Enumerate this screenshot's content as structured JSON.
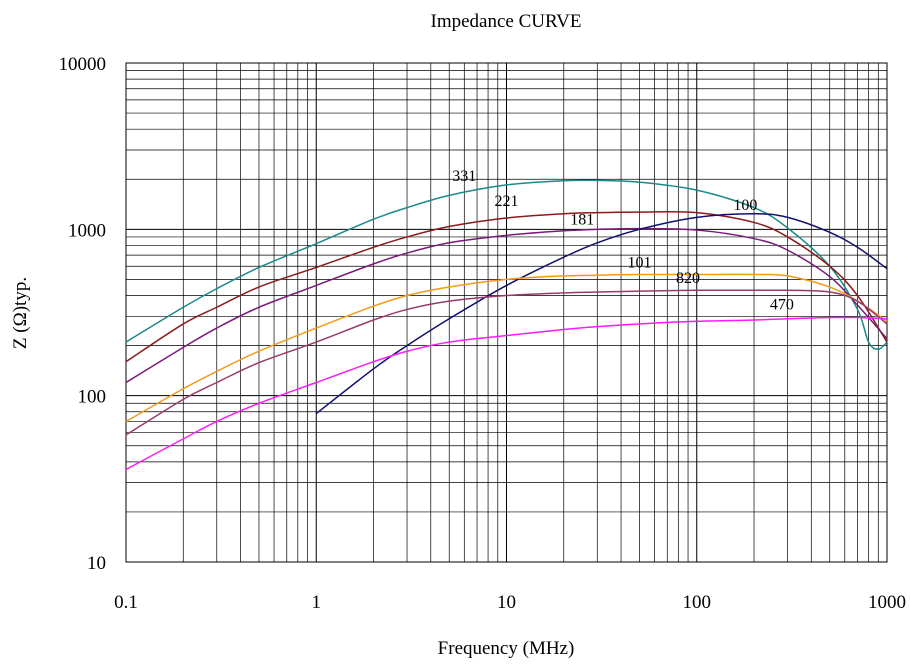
{
  "chart_data": {
    "type": "line",
    "title": "Impedance CURVE",
    "xlabel": "Frequency (MHz)",
    "ylabel": "Z (Ω)typ.",
    "x_scale": "log",
    "y_scale": "log",
    "xlim": [
      0.1,
      1000
    ],
    "ylim": [
      10,
      10000
    ],
    "x_ticks": [
      "0.1",
      "1",
      "10",
      "100",
      "1000"
    ],
    "y_ticks": [
      "10",
      "100",
      "1000",
      "10000"
    ],
    "grid": true,
    "legend": "none",
    "series": [
      {
        "name": "331",
        "color": "#1a8a8a",
        "label_at": [
          6,
          1950
        ],
        "points": [
          [
            0.1,
            210
          ],
          [
            0.2,
            340
          ],
          [
            0.3,
            440
          ],
          [
            0.5,
            590
          ],
          [
            1,
            820
          ],
          [
            2,
            1150
          ],
          [
            3,
            1350
          ],
          [
            5,
            1600
          ],
          [
            10,
            1850
          ],
          [
            20,
            1960
          ],
          [
            30,
            1970
          ],
          [
            50,
            1920
          ],
          [
            100,
            1720
          ],
          [
            200,
            1350
          ],
          [
            300,
            1020
          ],
          [
            500,
            600
          ],
          [
            700,
            330
          ],
          [
            800,
            210
          ],
          [
            900,
            190
          ],
          [
            1000,
            210
          ]
        ]
      },
      {
        "name": "221",
        "color": "#8b1a1a",
        "label_at": [
          10,
          1380
        ],
        "points": [
          [
            0.1,
            160
          ],
          [
            0.2,
            270
          ],
          [
            0.3,
            340
          ],
          [
            0.5,
            450
          ],
          [
            1,
            590
          ],
          [
            2,
            780
          ],
          [
            3,
            900
          ],
          [
            5,
            1040
          ],
          [
            10,
            1170
          ],
          [
            20,
            1240
          ],
          [
            30,
            1260
          ],
          [
            50,
            1270
          ],
          [
            100,
            1260
          ],
          [
            200,
            1100
          ],
          [
            300,
            900
          ],
          [
            500,
            600
          ],
          [
            700,
            400
          ],
          [
            1000,
            210
          ]
        ]
      },
      {
        "name": "181",
        "color": "#7a1a7a",
        "label_at": [
          25,
          1070
        ],
        "points": [
          [
            0.1,
            120
          ],
          [
            0.2,
            195
          ],
          [
            0.3,
            255
          ],
          [
            0.5,
            340
          ],
          [
            1,
            460
          ],
          [
            2,
            620
          ],
          [
            3,
            720
          ],
          [
            5,
            830
          ],
          [
            10,
            920
          ],
          [
            20,
            980
          ],
          [
            30,
            1000
          ],
          [
            50,
            1010
          ],
          [
            100,
            990
          ],
          [
            200,
            880
          ],
          [
            300,
            750
          ],
          [
            500,
            520
          ],
          [
            700,
            350
          ],
          [
            1000,
            220
          ]
        ]
      },
      {
        "name": "100",
        "color": "#101070",
        "label_at": [
          180,
          1310
        ],
        "points": [
          [
            1,
            78
          ],
          [
            2,
            145
          ],
          [
            3,
            200
          ],
          [
            5,
            290
          ],
          [
            10,
            460
          ],
          [
            20,
            680
          ],
          [
            30,
            830
          ],
          [
            50,
            1000
          ],
          [
            100,
            1180
          ],
          [
            200,
            1240
          ],
          [
            300,
            1180
          ],
          [
            500,
            960
          ],
          [
            700,
            780
          ],
          [
            1000,
            580
          ]
        ]
      },
      {
        "name": "101",
        "color": "#f39a1a",
        "label_at": [
          50,
          590
        ],
        "points": [
          [
            0.1,
            70
          ],
          [
            0.2,
            110
          ],
          [
            0.3,
            140
          ],
          [
            0.5,
            185
          ],
          [
            1,
            255
          ],
          [
            2,
            345
          ],
          [
            3,
            400
          ],
          [
            5,
            450
          ],
          [
            10,
            500
          ],
          [
            20,
            525
          ],
          [
            30,
            530
          ],
          [
            50,
            535
          ],
          [
            100,
            535
          ],
          [
            200,
            535
          ],
          [
            300,
            525
          ],
          [
            500,
            450
          ],
          [
            700,
            370
          ],
          [
            1000,
            280
          ]
        ]
      },
      {
        "name": "820",
        "color": "#9a3a6a",
        "label_at": [
          90,
          475
        ],
        "points": [
          [
            0.1,
            58
          ],
          [
            0.2,
            95
          ],
          [
            0.3,
            120
          ],
          [
            0.5,
            158
          ],
          [
            1,
            210
          ],
          [
            2,
            285
          ],
          [
            3,
            330
          ],
          [
            5,
            370
          ],
          [
            10,
            400
          ],
          [
            20,
            415
          ],
          [
            30,
            420
          ],
          [
            50,
            425
          ],
          [
            100,
            430
          ],
          [
            200,
            430
          ],
          [
            300,
            430
          ],
          [
            500,
            420
          ],
          [
            700,
            370
          ],
          [
            1000,
            270
          ]
        ]
      },
      {
        "name": "470",
        "color": "#ff1aff",
        "label_at": [
          280,
          330
        ],
        "points": [
          [
            0.1,
            36
          ],
          [
            0.2,
            55
          ],
          [
            0.3,
            70
          ],
          [
            0.5,
            90
          ],
          [
            1,
            120
          ],
          [
            2,
            160
          ],
          [
            3,
            185
          ],
          [
            5,
            210
          ],
          [
            10,
            230
          ],
          [
            20,
            250
          ],
          [
            30,
            260
          ],
          [
            50,
            270
          ],
          [
            100,
            280
          ],
          [
            200,
            285
          ],
          [
            300,
            290
          ],
          [
            500,
            295
          ],
          [
            700,
            295
          ],
          [
            1000,
            290
          ]
        ]
      }
    ]
  }
}
